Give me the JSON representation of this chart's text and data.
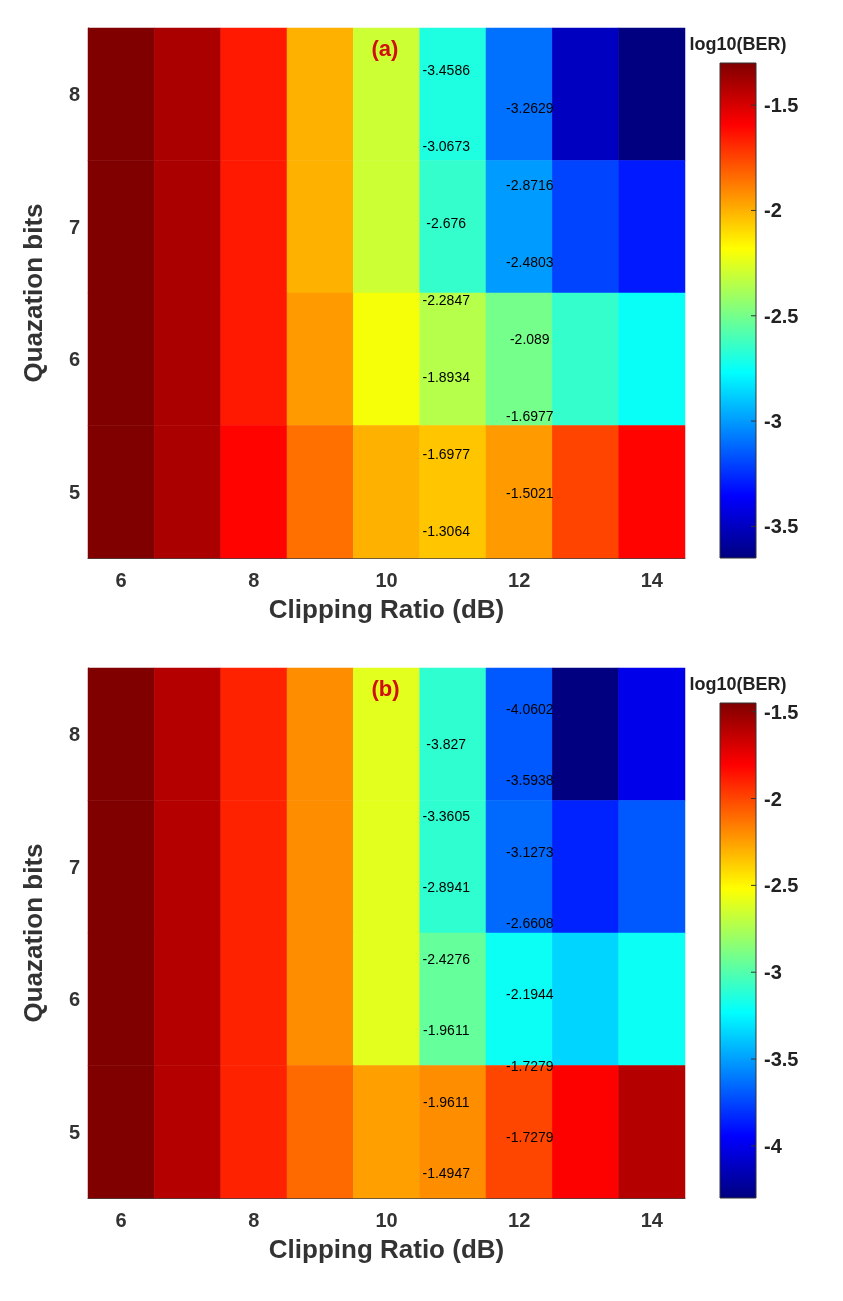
{
  "chart_data": [
    {
      "type": "heatmap",
      "title": "(a)",
      "xlabel": "Clipping Ratio (dB)",
      "ylabel": "Quazation bits",
      "clabel": "log10(BER)",
      "categories": [
        "6",
        null,
        "8",
        null,
        "10",
        null,
        "12",
        null,
        "14"
      ],
      "y_categories": [
        "8",
        "7",
        "6",
        "5"
      ],
      "cells": [
        [
          -1.3,
          -1.4,
          -1.65,
          -2.0,
          -2.3,
          -2.7,
          -3.1,
          -3.5,
          -3.65
        ],
        [
          -1.3,
          -1.4,
          -1.65,
          -2.0,
          -2.3,
          -2.65,
          -3.0,
          -3.2,
          -3.3
        ],
        [
          -1.3,
          -1.4,
          -1.65,
          -1.95,
          -2.2,
          -2.35,
          -2.5,
          -2.65,
          -2.75
        ],
        [
          -1.3,
          -1.4,
          -1.6,
          -1.85,
          -2.0,
          -2.05,
          -1.95,
          -1.75,
          -1.6
        ]
      ],
      "clim": [
        -3.65,
        -1.3
      ],
      "cticks": [
        -1.5,
        -2,
        -2.5,
        -3,
        -3.5
      ],
      "annotations": [
        "-1.3064",
        "-1.5021",
        "-1.6977",
        "-1.6977",
        "-1.8934",
        "-2.089",
        "-2.2847",
        "-2.4803",
        "-2.676",
        "-2.8716",
        "-3.0673",
        "-3.2629",
        "-3.4586"
      ]
    },
    {
      "type": "heatmap",
      "title": "(b)",
      "xlabel": "Clipping Ratio (dB)",
      "ylabel": "Quazation bits",
      "clabel": "log10(BER)",
      "categories": [
        "6",
        null,
        "8",
        null,
        "10",
        null,
        "12",
        null,
        "14"
      ],
      "y_categories": [
        "8",
        "7",
        "6",
        "5"
      ],
      "cells": [
        [
          -1.45,
          -1.6,
          -1.9,
          -2.2,
          -2.6,
          -3.1,
          -3.7,
          -4.3,
          -4.0
        ],
        [
          -1.45,
          -1.6,
          -1.9,
          -2.2,
          -2.6,
          -3.1,
          -3.65,
          -3.85,
          -3.7
        ],
        [
          -1.45,
          -1.6,
          -1.9,
          -2.2,
          -2.6,
          -2.95,
          -3.2,
          -3.35,
          -3.2
        ],
        [
          -1.45,
          -1.6,
          -1.9,
          -2.1,
          -2.25,
          -2.2,
          -2.0,
          -1.8,
          -1.6
        ]
      ],
      "clim": [
        -4.3,
        -1.45
      ],
      "cticks": [
        -1.5,
        -2,
        -2.5,
        -3,
        -3.5,
        -4
      ],
      "annotations": [
        "-1.4947",
        "-1.7279",
        "-1.9611",
        "-1.7279",
        "-1.9611",
        "-2.1944",
        "-2.4276",
        "-2.6608",
        "-2.8941",
        "-3.1273",
        "-3.3605",
        "-3.5938",
        "-3.827",
        "-4.0602"
      ]
    }
  ]
}
